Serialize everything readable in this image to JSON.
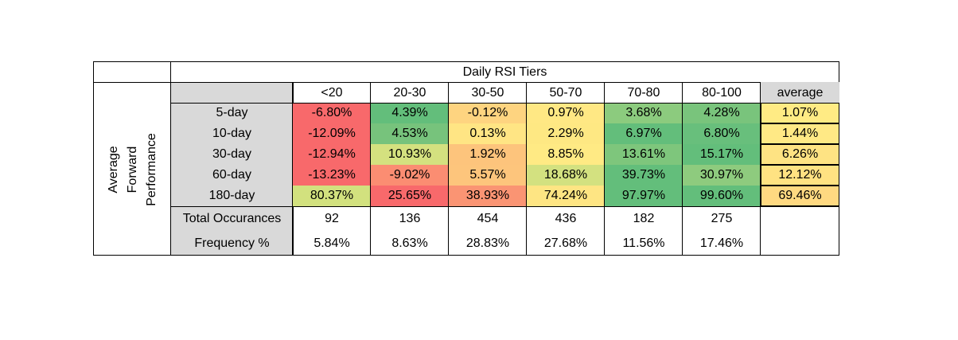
{
  "chart_data": {
    "type": "heatmap",
    "title": "Daily RSI Tiers",
    "ylabel": "Average Forward Performance",
    "columns": [
      "<20",
      "20-30",
      "30-50",
      "50-70",
      "70-80",
      "80-100",
      "average"
    ],
    "rows": [
      {
        "label": "5-day",
        "values": [
          "-6.80%",
          "4.39%",
          "-0.12%",
          "0.97%",
          "3.68%",
          "4.28%",
          "1.07%"
        ]
      },
      {
        "label": "10-day",
        "values": [
          "-12.09%",
          "4.53%",
          "0.13%",
          "2.29%",
          "6.97%",
          "6.80%",
          "1.44%"
        ]
      },
      {
        "label": "30-day",
        "values": [
          "-12.94%",
          "10.93%",
          "1.92%",
          "8.85%",
          "13.61%",
          "15.17%",
          "6.26%"
        ]
      },
      {
        "label": "60-day",
        "values": [
          "-13.23%",
          "-9.02%",
          "5.57%",
          "18.68%",
          "39.73%",
          "30.97%",
          "12.12%"
        ]
      },
      {
        "label": "180-day",
        "values": [
          "80.37%",
          "25.65%",
          "38.93%",
          "74.24%",
          "97.97%",
          "99.60%",
          "69.46%"
        ]
      }
    ],
    "footer_rows": [
      {
        "label": "Total Occurances",
        "values": [
          "92",
          "136",
          "454",
          "436",
          "182",
          "275"
        ]
      },
      {
        "label": "Frequency %",
        "values": [
          "5.84%",
          "8.63%",
          "28.83%",
          "27.68%",
          "11.56%",
          "17.46%"
        ]
      }
    ],
    "cell_colors": [
      [
        "#f8696b",
        "#63be7b",
        "#fed480",
        "#ffe884",
        "#8ccb7e",
        "#79c47c",
        "#ffeb84"
      ],
      [
        "#f8696b",
        "#77c37c",
        "#ffe584",
        "#fee883",
        "#63be7b",
        "#68bf7c",
        "#ffe985"
      ],
      [
        "#f8696b",
        "#d4e17f",
        "#fdc47c",
        "#ffea84",
        "#7ec67c",
        "#63be7b",
        "#fee383"
      ],
      [
        "#f8696b",
        "#fb8d72",
        "#fdc57c",
        "#d3e180",
        "#63be7b",
        "#8ecb7e",
        "#ffe282"
      ],
      [
        "#d2e17e",
        "#f8696b",
        "#fa9473",
        "#fee583",
        "#63be7b",
        "#63be7b",
        "#ffd981"
      ]
    ],
    "header_fill": "#d9d9d9"
  }
}
